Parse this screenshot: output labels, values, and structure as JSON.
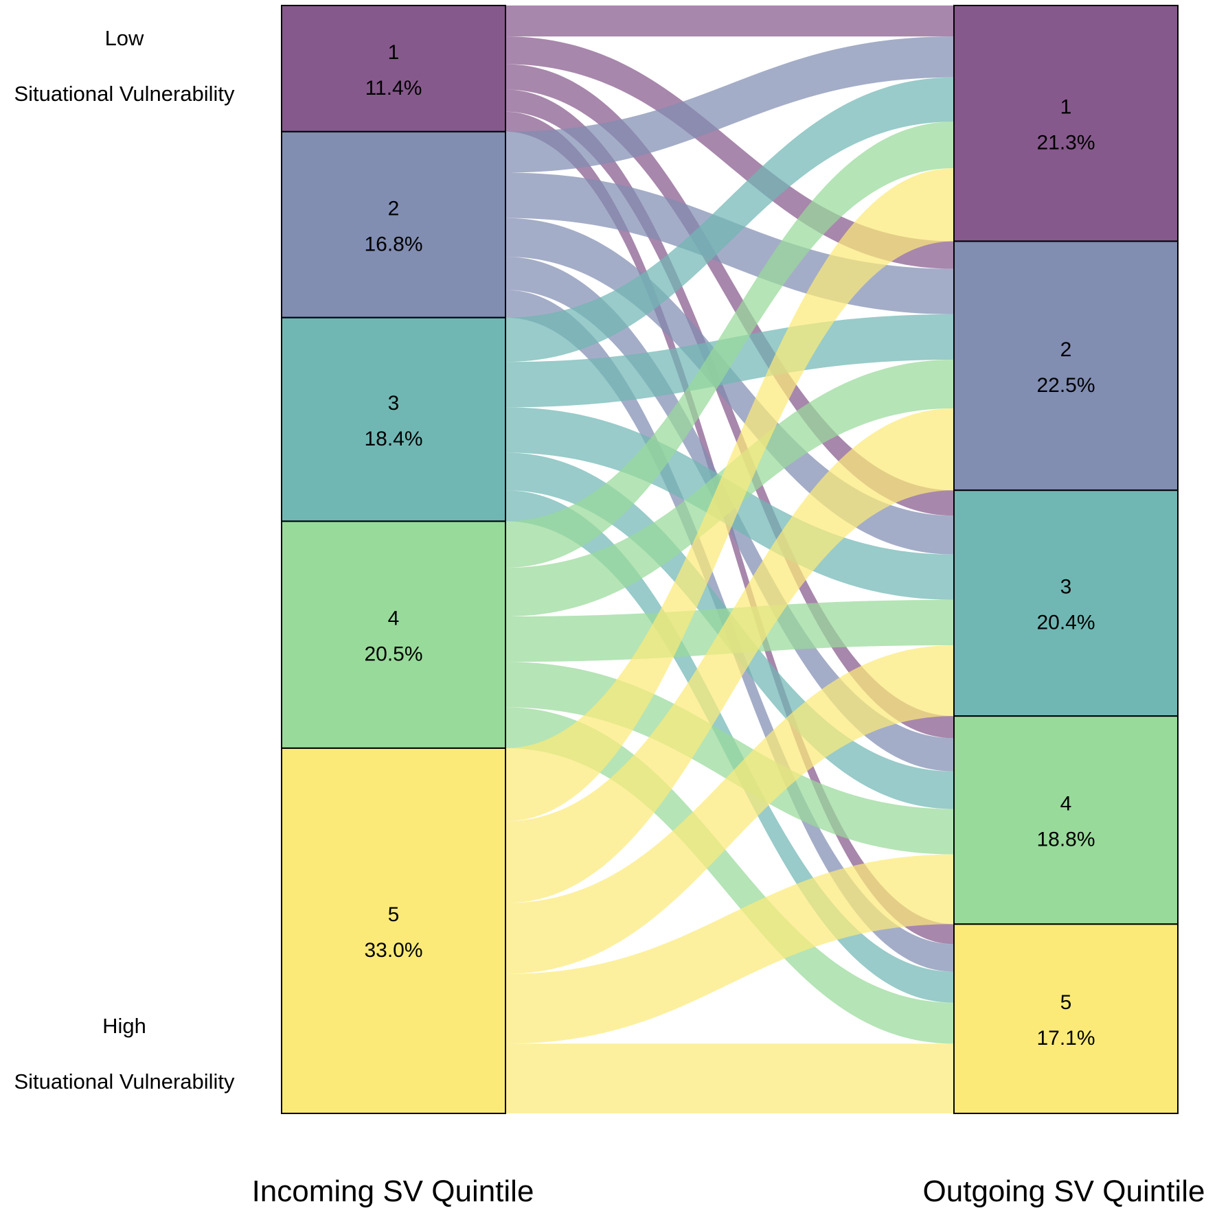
{
  "chart_data": {
    "type": "alluvial",
    "title": "",
    "xlabel_left": "Incoming SV Quintile",
    "xlabel_right": "Outgoing SV Quintile",
    "low_label": [
      "Low",
      "Situational Vulnerability"
    ],
    "high_label": [
      "High",
      "Situational Vulnerability"
    ],
    "colors": [
      "#86598c",
      "#818db1",
      "#70b7b4",
      "#98da9a",
      "#fbea78"
    ],
    "incoming": [
      {
        "name": "1",
        "pct": 11.4,
        "label": "11.4%"
      },
      {
        "name": "2",
        "pct": 16.8,
        "label": "16.8%"
      },
      {
        "name": "3",
        "pct": 18.4,
        "label": "18.4%"
      },
      {
        "name": "4",
        "pct": 20.5,
        "label": "20.5%"
      },
      {
        "name": "5",
        "pct": 33.0,
        "label": "33.0%"
      }
    ],
    "outgoing": [
      {
        "name": "1",
        "pct": 21.3,
        "label": "21.3%"
      },
      {
        "name": "2",
        "pct": 22.5,
        "label": "22.5%"
      },
      {
        "name": "3",
        "pct": 20.4,
        "label": "20.4%"
      },
      {
        "name": "4",
        "pct": 18.8,
        "label": "18.8%"
      },
      {
        "name": "5",
        "pct": 17.1,
        "label": "17.1%"
      }
    ],
    "flows": [
      {
        "from": 1,
        "to": 1,
        "pct": 2.8
      },
      {
        "from": 1,
        "to": 2,
        "pct": 2.5
      },
      {
        "from": 1,
        "to": 3,
        "pct": 2.3
      },
      {
        "from": 1,
        "to": 4,
        "pct": 2.0
      },
      {
        "from": 1,
        "to": 5,
        "pct": 1.8
      },
      {
        "from": 2,
        "to": 1,
        "pct": 3.7
      },
      {
        "from": 2,
        "to": 2,
        "pct": 4.1
      },
      {
        "from": 2,
        "to": 3,
        "pct": 3.5
      },
      {
        "from": 2,
        "to": 4,
        "pct": 3.0
      },
      {
        "from": 2,
        "to": 5,
        "pct": 2.5
      },
      {
        "from": 3,
        "to": 1,
        "pct": 4.0
      },
      {
        "from": 3,
        "to": 2,
        "pct": 4.1
      },
      {
        "from": 3,
        "to": 3,
        "pct": 4.1
      },
      {
        "from": 3,
        "to": 4,
        "pct": 3.4
      },
      {
        "from": 3,
        "to": 5,
        "pct": 2.8
      },
      {
        "from": 4,
        "to": 1,
        "pct": 4.2
      },
      {
        "from": 4,
        "to": 2,
        "pct": 4.4
      },
      {
        "from": 4,
        "to": 3,
        "pct": 4.1
      },
      {
        "from": 4,
        "to": 4,
        "pct": 4.1
      },
      {
        "from": 4,
        "to": 5,
        "pct": 3.7
      },
      {
        "from": 5,
        "to": 1,
        "pct": 6.6
      },
      {
        "from": 5,
        "to": 2,
        "pct": 7.4
      },
      {
        "from": 5,
        "to": 3,
        "pct": 6.4
      },
      {
        "from": 5,
        "to": 4,
        "pct": 6.3
      },
      {
        "from": 5,
        "to": 5,
        "pct": 6.3
      }
    ]
  }
}
